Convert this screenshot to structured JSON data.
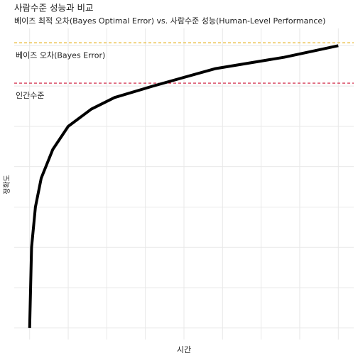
{
  "chart_data": {
    "type": "line",
    "title": "사람수준 성능과 비교",
    "subtitle": "베이즈 최적 오차(Bayes Optimal Error) vs. 사람수준 성능(Human-Level Performance)",
    "x_label": "시간",
    "y_label": "정확도",
    "x": [
      0,
      0.05,
      0.15,
      0.3,
      0.6,
      1,
      1.6,
      2.2,
      3.2,
      4.8,
      6.6,
      8
    ],
    "series": [
      {
        "color": "#000000",
        "values": [
          0.5,
          0.64,
          0.71,
          0.76,
          0.81,
          0.85,
          0.88,
          0.9,
          0.92,
          0.95,
          0.97,
          0.99
        ]
      }
    ],
    "reference_lines": [
      {
        "label": "베이즈 오차(Bayes Error)",
        "value": 0.995,
        "color": "#e6b422"
      },
      {
        "label": "인간수준",
        "value": 0.925,
        "color": "#cc1133"
      }
    ],
    "xlim": [
      -0.4,
      8.4
    ],
    "ylim": [
      0.48,
      1.02
    ],
    "xticks": [
      0,
      1,
      2,
      3,
      4,
      5,
      6,
      7,
      8
    ],
    "yticks": [
      0.5,
      0.57,
      0.64,
      0.71,
      0.78,
      0.85,
      0.92,
      0.99
    ],
    "grid": true
  }
}
